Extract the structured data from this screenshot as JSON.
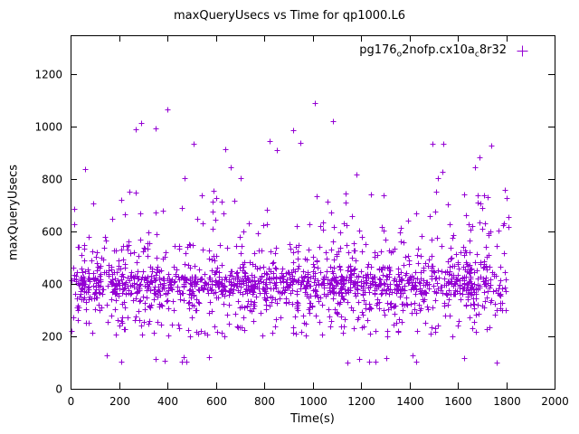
{
  "figure": {
    "background": "#ffffff",
    "border_color": "#000000"
  },
  "chart_data": {
    "type": "scatter",
    "title": "maxQueryUsecs vs Time for qp1000.L6",
    "xlabel": "Time(s)",
    "ylabel": "maxQueryUsecs",
    "xlim": [
      0,
      2000
    ],
    "ylim": [
      0,
      1350
    ],
    "xticks": [
      0,
      200,
      400,
      600,
      800,
      1000,
      1200,
      1400,
      1600,
      1800,
      2000
    ],
    "yticks": [
      0,
      200,
      400,
      600,
      800,
      1000,
      1200
    ],
    "grid": false,
    "legend": {
      "position": "top-right-inside",
      "label_full": "pg176_o2nofp.cx10a_c8r32",
      "parts": {
        "p1": "pg176",
        "sub1": "o",
        "p2": "2nofp.cx10a",
        "sub2": "c",
        "p3": "8r32"
      },
      "marker": "plus"
    },
    "series": [
      {
        "name": "pg176_o2nofp.cx10a_c8r32",
        "color": "#9400d3",
        "marker": "plus",
        "marker_half_px": 3,
        "n_points": 1650,
        "seed": 20240521,
        "x_range": [
          2,
          1810
        ],
        "y_bands": [
          {
            "range": [
              95,
              130
            ],
            "weight": 0.015
          },
          {
            "range": [
              200,
              300
            ],
            "weight": 0.08
          },
          {
            "range": [
              300,
              360
            ],
            "weight": 0.13
          },
          {
            "range": [
              360,
              395
            ],
            "weight": 0.2
          },
          {
            "range": [
              395,
              430
            ],
            "weight": 0.27
          },
          {
            "range": [
              430,
              470
            ],
            "weight": 0.13
          },
          {
            "range": [
              470,
              550
            ],
            "weight": 0.092
          },
          {
            "range": [
              550,
              650
            ],
            "weight": 0.046
          },
          {
            "range": [
              650,
              760
            ],
            "weight": 0.026
          },
          {
            "range": [
              760,
              850
            ],
            "weight": 0.007
          },
          {
            "range": [
              850,
              1000
            ],
            "weight": 0.003
          },
          {
            "range": [
              1000,
              1100
            ],
            "weight": 0.001
          }
        ],
        "outliers": [
          [
            270,
            990
          ],
          [
            1010,
            1092
          ],
          [
            640,
            915
          ],
          [
            1690,
            885
          ],
          [
            60,
            838
          ],
          [
            1180,
            820
          ],
          [
            470,
            805
          ],
          [
            1795,
            760
          ]
        ]
      }
    ]
  }
}
